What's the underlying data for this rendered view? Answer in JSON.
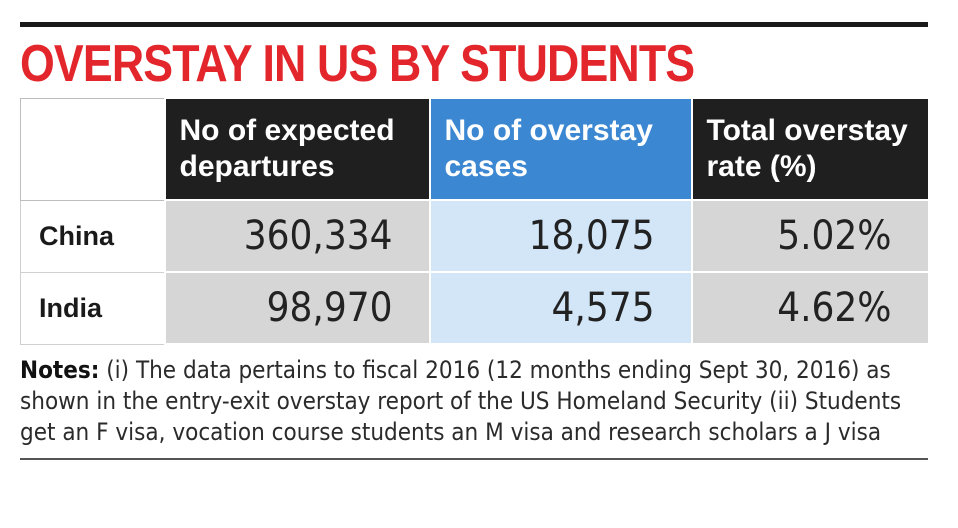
{
  "title": "OVERSTAY IN US BY STUDENTS",
  "chart_data": {
    "type": "table",
    "title": "OVERSTAY IN US BY STUDENTS",
    "columns": [
      "",
      "No of expected departures",
      "No of overstay cases",
      "Total overstay rate (%)"
    ],
    "rows": [
      {
        "country": "China",
        "expected_departures": "360,334",
        "overstay_cases": "18,075",
        "overstay_rate": "5.02%"
      },
      {
        "country": "India",
        "expected_departures": "98,970",
        "overstay_cases": "4,575",
        "overstay_rate": "4.62%"
      }
    ]
  },
  "notes": {
    "label": "Notes:",
    "text": " (i) The data pertains to fiscal 2016 (12 months ending Sept 30, 2016) as shown in the entry-exit overstay report of the US Homeland Security (ii) Students get an F visa, vocation course students an M visa and research scholars a J visa"
  },
  "colors": {
    "title": "#e3262b",
    "header_dark": "#1f1f1f",
    "header_blue": "#3b87d1",
    "cell_grey": "#d6d6d6",
    "cell_light_blue": "#d2e6f7"
  }
}
